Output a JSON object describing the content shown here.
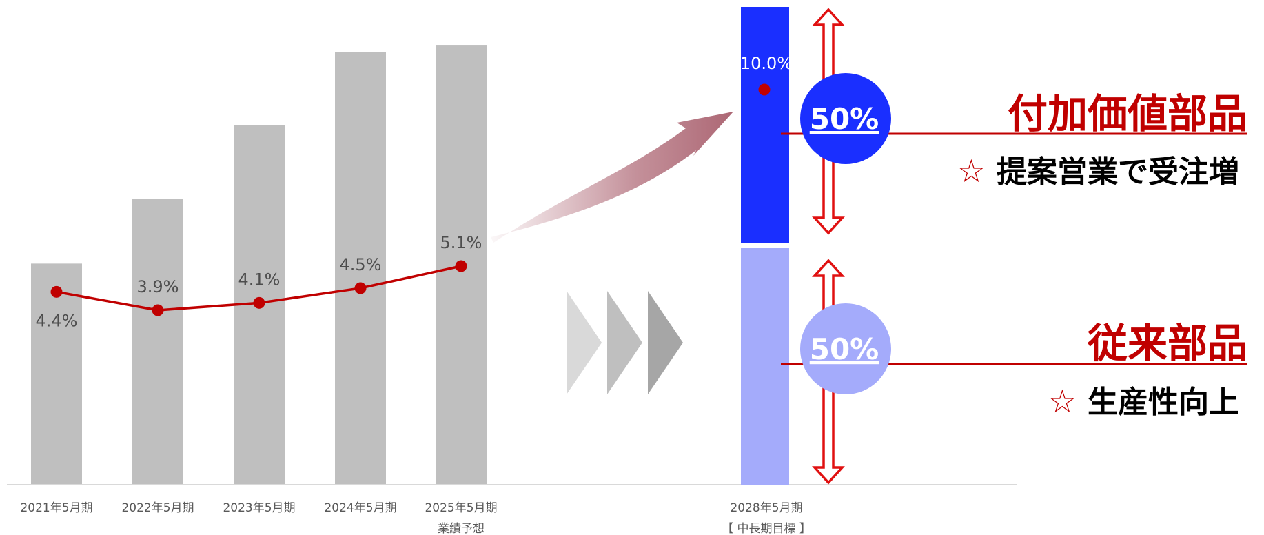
{
  "chart_data": {
    "type": "bar",
    "categories": [
      "2021年5月期",
      "2022年5月期",
      "2023年5月期",
      "2024年5月期",
      "2025年5月期"
    ],
    "category_sublabels": [
      "",
      "",
      "",
      "",
      "業績予想"
    ],
    "bar_values": [
      48,
      62,
      78,
      94,
      95.5
    ],
    "bar_ylim": [
      0,
      100
    ],
    "line_values": [
      4.4,
      3.9,
      4.1,
      4.5,
      5.1
    ],
    "line_labels": [
      "4.4%",
      "3.9%",
      "4.1%",
      "4.5%",
      "5.1%"
    ],
    "target": {
      "category": "2028年5月期",
      "sublabel": "【 中長期目標 】",
      "value_label": "10.0%",
      "value": 10.0,
      "segments": [
        {
          "share": 50,
          "label": "50%",
          "name": "付加価値部品",
          "note": "提案営業で受注増",
          "color": "#1a2fff"
        },
        {
          "share": 50,
          "label": "50%",
          "name": "従来部品",
          "note": "生産性向上",
          "color": "#a4abfb"
        }
      ]
    },
    "colors": {
      "bar": "#bfbfbf",
      "line": "#c00000",
      "accent": "#c00000",
      "axis": "#d9d9d9"
    },
    "star_glyph": "☆"
  }
}
